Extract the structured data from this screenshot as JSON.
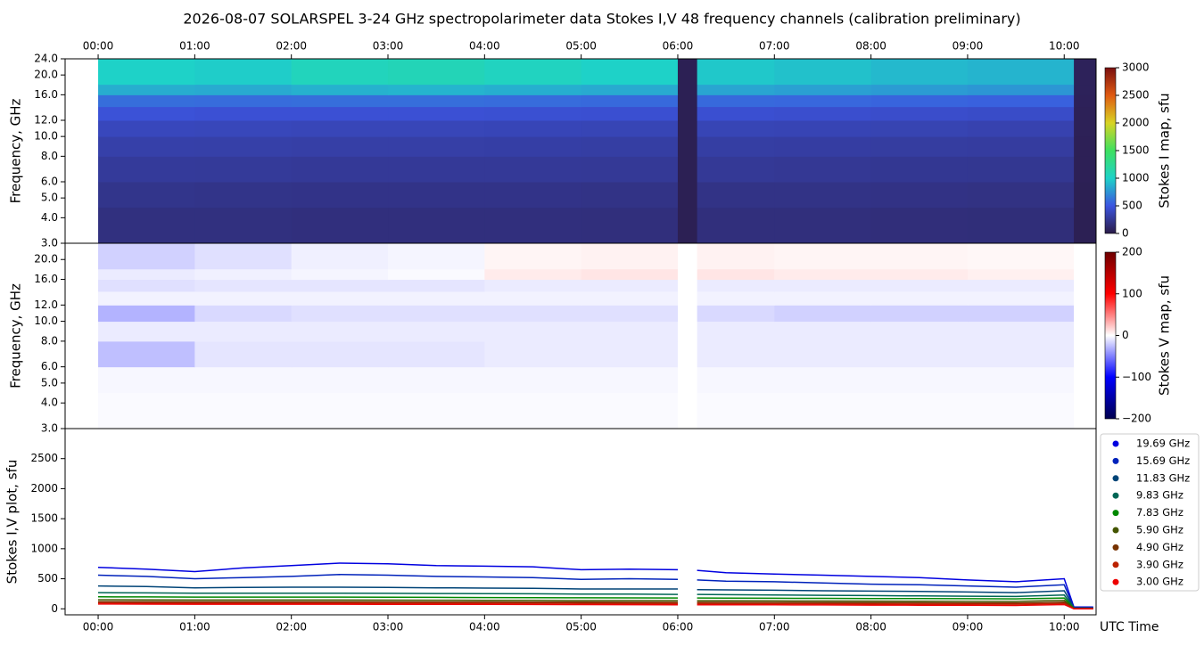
{
  "chart_data": [
    {
      "type": "heatmap",
      "title": "2026-08-07  SOLARSPEL  3-24 GHz spectropolarimeter data   Stokes I,V   48 frequency channels   (calibration preliminary)",
      "ylabel": "Frequency, GHz",
      "log_y": true,
      "xlim": [
        -0.342,
        10.33
      ],
      "ylim": [
        3,
        24
      ],
      "xticks": [
        {
          "value": 0,
          "label": "00:00"
        },
        {
          "value": 1,
          "label": "01:00"
        },
        {
          "value": 2,
          "label": "02:00"
        },
        {
          "value": 3,
          "label": "03:00"
        },
        {
          "value": 4,
          "label": "04:00"
        },
        {
          "value": 5,
          "label": "05:00"
        },
        {
          "value": 6,
          "label": "06:00"
        },
        {
          "value": 7,
          "label": "07:00"
        },
        {
          "value": 8,
          "label": "08:00"
        },
        {
          "value": 9,
          "label": "09:00"
        },
        {
          "value": 10,
          "label": "10:00"
        }
      ],
      "yticks": [
        {
          "value": 3,
          "label": "3.0"
        },
        {
          "value": 4,
          "label": "4.0"
        },
        {
          "value": 5,
          "label": "5.0"
        },
        {
          "value": 6,
          "label": "6.0"
        },
        {
          "value": 8,
          "label": "8.0"
        },
        {
          "value": 10,
          "label": "10.0"
        },
        {
          "value": 12,
          "label": "12.0"
        },
        {
          "value": 16,
          "label": "16.0"
        },
        {
          "value": 20,
          "label": "20.0"
        },
        {
          "value": 24,
          "label": "24.0"
        }
      ],
      "x_edges": [
        0,
        1,
        2,
        3,
        4,
        5,
        6,
        6.2,
        7,
        8,
        9,
        10.1,
        10.33
      ],
      "y_edges": [
        3,
        4.5,
        6,
        8,
        10,
        12,
        14,
        16,
        18,
        24
      ],
      "values": [
        [
          180,
          180,
          175,
          175,
          175,
          170,
          40,
          170,
          170,
          165,
          160,
          40
        ],
        [
          220,
          215,
          210,
          210,
          210,
          205,
          40,
          205,
          205,
          200,
          195,
          40
        ],
        [
          270,
          265,
          260,
          260,
          260,
          255,
          40,
          255,
          250,
          245,
          240,
          45
        ],
        [
          320,
          315,
          310,
          310,
          305,
          300,
          40,
          300,
          295,
          290,
          285,
          45
        ],
        [
          380,
          375,
          370,
          370,
          365,
          360,
          40,
          360,
          355,
          350,
          340,
          50
        ],
        [
          470,
          460,
          460,
          460,
          455,
          450,
          40,
          450,
          440,
          430,
          420,
          50
        ],
        [
          600,
          590,
          600,
          600,
          590,
          580,
          40,
          580,
          570,
          560,
          550,
          55
        ],
        [
          850,
          840,
          870,
          880,
          860,
          840,
          40,
          820,
          800,
          780,
          760,
          60
        ],
        [
          1000,
          980,
          1060,
          1080,
          1040,
          1000,
          40,
          960,
          930,
          900,
          880,
          60
        ]
      ],
      "colorbar": {
        "label": "Stokes I map, sfu",
        "lim": [
          0,
          3000
        ],
        "ticks": [
          0,
          500,
          1000,
          1500,
          2000,
          2500,
          3000
        ],
        "colors": [
          "#2b1b48",
          "#3c55e0",
          "#1ed2c8",
          "#3ee060",
          "#d8d424",
          "#e05a12",
          "#7a1010"
        ]
      }
    },
    {
      "type": "heatmap",
      "ylabel": "Frequency, GHz",
      "log_y": true,
      "xlim": [
        -0.342,
        10.33
      ],
      "ylim": [
        3,
        24
      ],
      "yticks": [
        {
          "value": 3,
          "label": "3.0"
        },
        {
          "value": 4,
          "label": "4.0"
        },
        {
          "value": 5,
          "label": "5.0"
        },
        {
          "value": 6,
          "label": "6.0"
        },
        {
          "value": 8,
          "label": "8.0"
        },
        {
          "value": 10,
          "label": "10.0"
        },
        {
          "value": 12,
          "label": "12.0"
        },
        {
          "value": 16,
          "label": "16.0"
        },
        {
          "value": 20,
          "label": "20.0"
        }
      ],
      "x_edges": [
        0,
        1,
        2,
        3,
        4,
        5,
        6,
        6.2,
        7,
        8,
        9,
        10.1,
        10.33
      ],
      "y_edges": [
        3,
        4.5,
        6,
        8,
        10,
        12,
        14,
        16,
        18,
        24
      ],
      "values": [
        [
          -2,
          -2,
          -2,
          -2,
          -2,
          -2,
          0,
          -2,
          -2,
          -2,
          -2,
          0
        ],
        [
          -3,
          -3,
          -3,
          -3,
          -3,
          -3,
          0,
          -3,
          -3,
          -3,
          -3,
          0
        ],
        [
          -25,
          -10,
          -10,
          -10,
          -8,
          -8,
          0,
          -8,
          -8,
          -8,
          -8,
          0
        ],
        [
          -8,
          -8,
          -8,
          -8,
          -8,
          -8,
          0,
          -8,
          -8,
          -8,
          -8,
          0
        ],
        [
          -30,
          -15,
          -12,
          -12,
          -12,
          -12,
          0,
          -15,
          -18,
          -18,
          -18,
          0
        ],
        [
          -5,
          -5,
          -5,
          -5,
          -5,
          -5,
          0,
          -5,
          -5,
          -5,
          -5,
          0
        ],
        [
          -12,
          -10,
          -10,
          -10,
          -8,
          -8,
          0,
          -8,
          -8,
          -8,
          -8,
          0
        ],
        [
          -8,
          -6,
          -4,
          -2,
          8,
          10,
          0,
          10,
          8,
          8,
          6,
          0
        ],
        [
          -18,
          -12,
          -6,
          -4,
          4,
          5,
          0,
          5,
          4,
          4,
          3,
          0
        ]
      ],
      "colorbar": {
        "label": "Stokes V map, sfu",
        "lim": [
          -200,
          200
        ],
        "ticks": [
          {
            "value": -200,
            "label": "−200"
          },
          {
            "value": -100,
            "label": "−100"
          },
          0,
          100,
          200
        ],
        "colors": [
          "#00004e",
          "#0000ff",
          "#ffffff",
          "#ff0000",
          "#6e0000"
        ]
      }
    },
    {
      "type": "line",
      "ylabel": "Stokes I,V plot, sfu",
      "xlabel": "UTC Time",
      "legend": "outside-right",
      "xlim": [
        -0.342,
        10.33
      ],
      "ylim": [
        -100,
        3000
      ],
      "xticks": [
        {
          "value": 0,
          "label": "00:00"
        },
        {
          "value": 1,
          "label": "01:00"
        },
        {
          "value": 2,
          "label": "02:00"
        },
        {
          "value": 3,
          "label": "03:00"
        },
        {
          "value": 4,
          "label": "04:00"
        },
        {
          "value": 5,
          "label": "05:00"
        },
        {
          "value": 6,
          "label": "06:00"
        },
        {
          "value": 7,
          "label": "07:00"
        },
        {
          "value": 8,
          "label": "08:00"
        },
        {
          "value": 9,
          "label": "09:00"
        },
        {
          "value": 10,
          "label": "10:00"
        }
      ],
      "yticks": [
        0,
        500,
        1000,
        1500,
        2000,
        2500
      ],
      "x": [
        0,
        0.5,
        1,
        1.5,
        2,
        2.5,
        3,
        3.5,
        4,
        4.5,
        5,
        5.5,
        6,
        6.1,
        6.2,
        6.5,
        7,
        7.5,
        8,
        8.5,
        9,
        9.5,
        10,
        10.1,
        10.3
      ],
      "series": [
        {
          "name": "19.69 GHz",
          "color": "#0000e0",
          "values": [
            690,
            660,
            620,
            680,
            720,
            760,
            750,
            720,
            710,
            700,
            650,
            660,
            650,
            null,
            640,
            600,
            580,
            560,
            540,
            520,
            480,
            450,
            500,
            30,
            30
          ]
        },
        {
          "name": "15.69 GHz",
          "color": "#0022bb",
          "values": [
            560,
            540,
            500,
            520,
            540,
            570,
            560,
            540,
            530,
            520,
            490,
            500,
            490,
            null,
            480,
            460,
            450,
            430,
            410,
            400,
            380,
            360,
            400,
            20,
            20
          ]
        },
        {
          "name": "11.83 GHz",
          "color": "#004477",
          "values": [
            380,
            370,
            350,
            355,
            360,
            360,
            355,
            350,
            345,
            340,
            330,
            330,
            330,
            null,
            320,
            315,
            310,
            300,
            295,
            290,
            280,
            270,
            300,
            15,
            15
          ]
        },
        {
          "name": "9.83 GHz",
          "color": "#006655",
          "values": [
            270,
            265,
            260,
            260,
            260,
            260,
            258,
            255,
            252,
            250,
            245,
            245,
            240,
            null,
            240,
            235,
            230,
            225,
            220,
            215,
            210,
            205,
            230,
            10,
            10
          ]
        },
        {
          "name": "7.83 GHz",
          "color": "#008800",
          "values": [
            200,
            198,
            195,
            195,
            195,
            195,
            192,
            190,
            188,
            186,
            184,
            182,
            180,
            null,
            180,
            178,
            176,
            174,
            172,
            170,
            168,
            165,
            180,
            8,
            8
          ]
        },
        {
          "name": "5.90 GHz",
          "color": "#445500",
          "values": [
            150,
            148,
            146,
            146,
            146,
            146,
            145,
            143,
            142,
            140,
            138,
            137,
            136,
            null,
            135,
            134,
            132,
            130,
            128,
            126,
            124,
            122,
            140,
            5,
            5
          ]
        },
        {
          "name": "4.90 GHz",
          "color": "#773300",
          "values": [
            120,
            118,
            116,
            116,
            116,
            116,
            115,
            114,
            113,
            112,
            110,
            109,
            108,
            null,
            108,
            107,
            106,
            104,
            102,
            100,
            98,
            96,
            110,
            4,
            4
          ]
        },
        {
          "name": "3.90 GHz",
          "color": "#bb2200",
          "values": [
            100,
            98,
            96,
            96,
            96,
            96,
            95,
            94,
            93,
            92,
            90,
            89,
            88,
            null,
            88,
            87,
            86,
            84,
            82,
            80,
            78,
            76,
            90,
            2,
            2
          ]
        },
        {
          "name": "3.00 GHz",
          "color": "#ee0000",
          "values": [
            80,
            78,
            76,
            76,
            76,
            76,
            75,
            74,
            73,
            72,
            70,
            69,
            68,
            null,
            68,
            67,
            66,
            64,
            62,
            60,
            58,
            56,
            70,
            0,
            0
          ]
        }
      ]
    }
  ]
}
